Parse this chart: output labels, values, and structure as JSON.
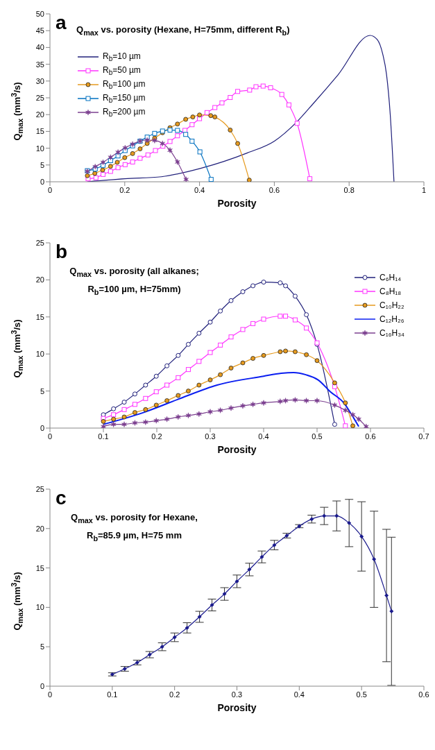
{
  "chart_data": [
    {
      "type": "line",
      "title": "Q$_{max}$ vs. porosity (Hexane, H=75mm, different R$_{b}$)",
      "xlabel": "Porosity",
      "ylabel": "Q$_{max}$ (mm$^{3}$/s)",
      "annotations": [
        "a"
      ],
      "xlim": [
        0,
        1
      ],
      "xticks": [
        0,
        0.2,
        0.4,
        0.6,
        0.8,
        1
      ],
      "ylim": [
        0,
        50
      ],
      "yticks": [
        0,
        5,
        10,
        15,
        20,
        25,
        30,
        35,
        40,
        45,
        50
      ],
      "legend": "top left",
      "series": [
        {
          "name": "R$_{b}$=10 µm",
          "color": "#1f1f7a",
          "marker": "none",
          "x": [
            0.1,
            0.2,
            0.298,
            0.403,
            0.528,
            0.6,
            0.659,
            0.705,
            0.77,
            0.856,
            0.875,
            0.89,
            0.9,
            0.91,
            0.92
          ],
          "values": [
            0,
            0.9,
            1.5,
            4.0,
            8.6,
            12.1,
            17.7,
            23.4,
            31.8,
            43.6,
            42.4,
            38,
            32,
            20,
            0
          ]
        },
        {
          "name": "R$_{b}$=50 µm",
          "color": "#ff33ff",
          "marker": "square",
          "x": [
            0.102,
            0.123,
            0.142,
            0.162,
            0.182,
            0.201,
            0.221,
            0.241,
            0.262,
            0.282,
            0.302,
            0.321,
            0.341,
            0.361,
            0.38,
            0.4,
            0.42,
            0.441,
            0.46,
            0.482,
            0.502,
            0.534,
            0.551,
            0.57,
            0.59,
            0.62,
            0.639,
            0.661,
            0.695
          ],
          "values": [
            0.9,
            1.2,
            2.2,
            3.1,
            4.2,
            5.1,
            5.9,
            7.0,
            8.0,
            9.3,
            10.6,
            12.0,
            13.7,
            15.3,
            17.0,
            18.8,
            20.6,
            22.1,
            23.5,
            25.1,
            26.9,
            27.3,
            28.3,
            28.5,
            28.0,
            26.0,
            22.9,
            17.4,
            0.9
          ]
        },
        {
          "name": "R$_{b}$=100 µm",
          "color": "#e69a1e",
          "marker": "circle",
          "x": [
            0.1,
            0.12,
            0.141,
            0.162,
            0.18,
            0.2,
            0.221,
            0.241,
            0.26,
            0.28,
            0.301,
            0.321,
            0.341,
            0.363,
            0.382,
            0.4,
            0.43,
            0.441,
            0.482,
            0.502,
            0.533
          ],
          "values": [
            1.8,
            2.5,
            3.5,
            4.6,
            5.8,
            7.2,
            8.4,
            9.8,
            11.4,
            13.0,
            14.6,
            16.1,
            17.2,
            18.6,
            19.3,
            19.9,
            19.7,
            19.3,
            15.4,
            11.4,
            0.5
          ]
        },
        {
          "name": "R$_{b}$=150 µm",
          "color": "#0070c0",
          "marker": "square",
          "x": [
            0.1,
            0.121,
            0.142,
            0.162,
            0.182,
            0.201,
            0.221,
            0.241,
            0.26,
            0.28,
            0.301,
            0.321,
            0.341,
            0.363,
            0.38,
            0.401,
            0.431
          ],
          "values": [
            3.3,
            3.8,
            4.9,
            6.3,
            7.7,
            9.3,
            10.7,
            12.1,
            13.3,
            14.4,
            15.1,
            15.4,
            15.3,
            14.1,
            12.1,
            8.9,
            0.7
          ]
        },
        {
          "name": "R$_{b}$=200 µm",
          "color": "#7b3f8f",
          "marker": "cross",
          "x": [
            0.1,
            0.121,
            0.142,
            0.162,
            0.182,
            0.201,
            0.221,
            0.241,
            0.26,
            0.28,
            0.301,
            0.321,
            0.341,
            0.364
          ],
          "values": [
            3.1,
            4.5,
            5.8,
            7.3,
            8.8,
            10.1,
            11.2,
            12.1,
            12.4,
            12.3,
            11.4,
            9.4,
            5.9,
            0.7
          ]
        }
      ]
    },
    {
      "type": "line",
      "title": "Q$_{max}$ vs. porosity (all alkanes; R$_{b}$=100 µm, H=75mm)",
      "xlabel": "Porosity",
      "ylabel": "Q$_{max}$ (mm$^{3}$/s)",
      "annotations": [
        "b"
      ],
      "xlim": [
        0,
        0.7
      ],
      "xticks": [
        0,
        0.1,
        0.2,
        0.3,
        0.4,
        0.5,
        0.6,
        0.7
      ],
      "ylim": [
        0,
        25
      ],
      "yticks": [
        0,
        5,
        10,
        15,
        20,
        25
      ],
      "legend": "top right",
      "series": [
        {
          "name": "C₆H₁₄",
          "color": "#1f1f7a",
          "marker": "circle_open",
          "x": [
            0.1,
            0.119,
            0.139,
            0.159,
            0.179,
            0.199,
            0.219,
            0.24,
            0.259,
            0.279,
            0.3,
            0.319,
            0.339,
            0.361,
            0.38,
            0.4,
            0.431,
            0.441,
            0.459,
            0.48,
            0.5,
            0.533
          ],
          "values": [
            1.8,
            2.6,
            3.5,
            4.6,
            5.8,
            7.0,
            8.4,
            9.8,
            11.3,
            12.8,
            14.3,
            15.8,
            17.2,
            18.4,
            19.2,
            19.7,
            19.6,
            19.2,
            17.8,
            15.3,
            11.3,
            0.5
          ]
        },
        {
          "name": "C₈H₁₈",
          "color": "#ff33ff",
          "marker": "square",
          "x": [
            0.1,
            0.119,
            0.139,
            0.159,
            0.179,
            0.199,
            0.219,
            0.24,
            0.259,
            0.279,
            0.3,
            0.319,
            0.339,
            0.361,
            0.38,
            0.4,
            0.431,
            0.441,
            0.459,
            0.48,
            0.5,
            0.533,
            0.553
          ],
          "values": [
            1.3,
            1.8,
            2.5,
            3.2,
            4.0,
            4.9,
            5.8,
            6.8,
            7.9,
            9.0,
            10.2,
            11.2,
            12.3,
            13.3,
            14.1,
            14.7,
            15.1,
            15.1,
            14.6,
            13.5,
            11.5,
            5.6,
            0.3
          ]
        },
        {
          "name": "C₁₀H₂₂",
          "color": "#e69a1e",
          "marker": "circle",
          "x": [
            0.1,
            0.119,
            0.139,
            0.159,
            0.179,
            0.199,
            0.219,
            0.24,
            0.259,
            0.279,
            0.3,
            0.319,
            0.339,
            0.361,
            0.38,
            0.4,
            0.431,
            0.441,
            0.459,
            0.48,
            0.5,
            0.533,
            0.553,
            0.567
          ],
          "values": [
            0.9,
            1.2,
            1.5,
            2.1,
            2.5,
            3.1,
            3.7,
            4.4,
            5.0,
            5.8,
            6.5,
            7.2,
            8.1,
            8.8,
            9.4,
            9.8,
            10.3,
            10.4,
            10.3,
            9.9,
            9.1,
            6.1,
            3.4,
            0.3
          ]
        },
        {
          "name": "C₁₂H₂₆",
          "color": "#0a1ef0",
          "marker": "none",
          "x": [
            0.1,
            0.175,
            0.244,
            0.313,
            0.4,
            0.433,
            0.456,
            0.479,
            0.502,
            0.525,
            0.55,
            0.564,
            0.578
          ],
          "values": [
            0.5,
            2.1,
            4.0,
            5.8,
            7.0,
            7.4,
            7.5,
            7.2,
            6.5,
            4.9,
            3.4,
            1.9,
            0.2
          ]
        },
        {
          "name": "C₁₆H₃₄",
          "color": "#7b3f8f",
          "marker": "cross",
          "x": [
            0.1,
            0.119,
            0.139,
            0.159,
            0.179,
            0.199,
            0.219,
            0.24,
            0.259,
            0.279,
            0.3,
            0.319,
            0.339,
            0.361,
            0.38,
            0.4,
            0.431,
            0.441,
            0.459,
            0.48,
            0.5,
            0.533,
            0.553,
            0.567,
            0.578,
            0.592
          ],
          "values": [
            0.2,
            0.5,
            0.5,
            0.7,
            0.8,
            1.0,
            1.2,
            1.5,
            1.7,
            1.9,
            2.2,
            2.4,
            2.7,
            3.0,
            3.2,
            3.4,
            3.6,
            3.7,
            3.8,
            3.7,
            3.7,
            3.1,
            2.4,
            1.8,
            1.2,
            0.2
          ]
        }
      ]
    },
    {
      "type": "line",
      "title": "Q$_{max}$ vs. porosity for Hexane, R$_{b}$=85.9 µm, H=75 mm",
      "xlabel": "Porosity",
      "ylabel": "Q$_{max}$ (mm$^{3}$/s)",
      "annotations": [
        "c"
      ],
      "xlim": [
        0,
        0.6
      ],
      "xticks": [
        0,
        0.1,
        0.2,
        0.3,
        0.4,
        0.5,
        0.6
      ],
      "ylim": [
        0,
        25
      ],
      "yticks": [
        0,
        5,
        10,
        15,
        20,
        25
      ],
      "series": [
        {
          "color": "#1a1a8c",
          "marker": "diamond",
          "x": [
            0.1,
            0.12,
            0.14,
            0.16,
            0.18,
            0.2,
            0.22,
            0.24,
            0.26,
            0.28,
            0.3,
            0.32,
            0.34,
            0.36,
            0.38,
            0.4,
            0.42,
            0.44,
            0.46,
            0.48,
            0.5,
            0.52,
            0.54,
            0.548
          ],
          "values": [
            1.5,
            2.2,
            3.0,
            4.0,
            5.0,
            6.2,
            7.4,
            8.8,
            10.3,
            11.7,
            13.3,
            14.8,
            16.4,
            17.9,
            19.1,
            20.3,
            21.2,
            21.6,
            21.6,
            20.7,
            19.0,
            16.1,
            11.5,
            9.5
          ],
          "errors": [
            0.2,
            0.3,
            0.3,
            0.4,
            0.5,
            0.55,
            0.65,
            0.7,
            0.75,
            0.8,
            0.8,
            0.8,
            0.75,
            0.6,
            0.3,
            0.2,
            0.5,
            1.1,
            1.9,
            3.0,
            4.4,
            6.1,
            8.4,
            9.4
          ]
        }
      ]
    }
  ]
}
